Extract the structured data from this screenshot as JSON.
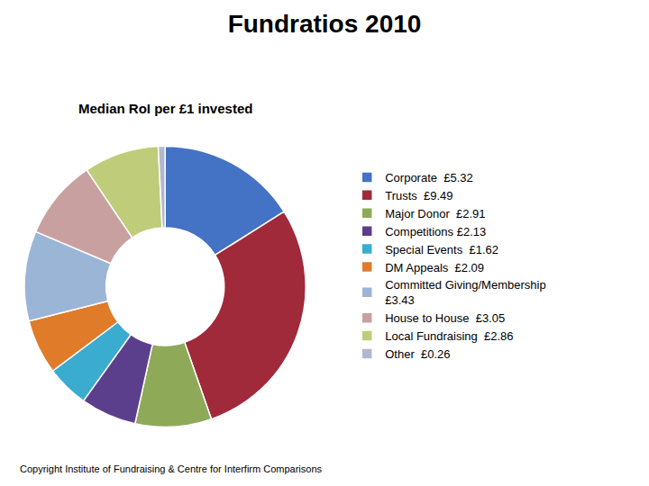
{
  "chart_data": {
    "type": "pie",
    "title": "Fundratios 2010",
    "subtitle": "Median RoI per £1 invested",
    "categories": [
      "Corporate  £5.32",
      "Trusts  £9.49",
      "Major Donor  £2.91",
      "Competitions £2.13",
      "Special Events  £1.62",
      "DM Appeals  £2.09",
      "Committed Giving/Membership\n£3.43",
      "House to House  £3.05",
      "Local Fundraising  £2.86",
      "Other  £0.26"
    ],
    "values": [
      5.32,
      9.49,
      2.91,
      2.13,
      1.62,
      2.09,
      3.43,
      3.05,
      2.86,
      0.26
    ],
    "colors": [
      "#4472C4",
      "#A0293A",
      "#8EAA58",
      "#5B3F8C",
      "#3AACCF",
      "#E07B2A",
      "#9BB5D6",
      "#C9A0A0",
      "#BFCC7A",
      "#B0B8D0"
    ],
    "annotations": [
      "Copyright Institute of Fundraising & Centre for Interfirm Comparisons"
    ],
    "legend": "right"
  }
}
